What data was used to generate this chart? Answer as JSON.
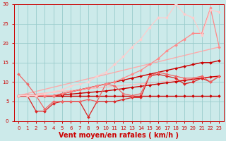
{
  "xlabel": "Vent moyen/en rafales ( km/h )",
  "xlim": [
    -0.5,
    23.5
  ],
  "ylim": [
    0,
    30
  ],
  "xticks": [
    0,
    1,
    2,
    3,
    4,
    5,
    6,
    7,
    8,
    9,
    10,
    11,
    12,
    13,
    14,
    15,
    16,
    17,
    18,
    19,
    20,
    21,
    22,
    23
  ],
  "yticks": [
    0,
    5,
    10,
    15,
    20,
    25,
    30
  ],
  "bg_color": "#cceaea",
  "grid_color": "#99cccc",
  "series": [
    {
      "x": [
        0,
        1,
        2,
        3,
        4,
        5,
        6,
        7,
        8,
        9,
        10,
        11,
        12,
        13,
        14,
        15,
        16,
        17,
        18,
        19,
        20,
        21,
        22,
        23
      ],
      "y": [
        6.5,
        6.5,
        6.5,
        6.5,
        6.5,
        6.5,
        6.5,
        6.5,
        6.5,
        6.5,
        6.5,
        6.5,
        6.5,
        6.5,
        6.5,
        6.5,
        6.5,
        6.5,
        6.5,
        6.5,
        6.5,
        6.5,
        6.5,
        6.5
      ],
      "color": "#cc0000",
      "lw": 1.0,
      "marker": "D",
      "ms": 2.0
    },
    {
      "x": [
        0,
        1,
        2,
        3,
        4,
        5,
        6,
        7,
        8,
        9,
        10,
        11,
        12,
        13,
        14,
        15,
        16,
        17,
        18,
        19,
        20,
        21,
        22,
        23
      ],
      "y": [
        6.5,
        6.5,
        6.5,
        6.5,
        6.5,
        6.7,
        6.9,
        7.1,
        7.3,
        7.5,
        7.7,
        8.0,
        8.3,
        8.6,
        8.9,
        9.2,
        9.5,
        9.8,
        10.1,
        10.4,
        10.7,
        11.0,
        11.3,
        11.5
      ],
      "color": "#cc0000",
      "lw": 1.0,
      "marker": "D",
      "ms": 2.0
    },
    {
      "x": [
        0,
        1,
        2,
        3,
        4,
        5,
        6,
        7,
        8,
        9,
        10,
        11,
        12,
        13,
        14,
        15,
        16,
        17,
        18,
        19,
        20,
        21,
        22,
        23
      ],
      "y": [
        6.5,
        6.5,
        6.5,
        6.5,
        6.5,
        7.0,
        7.5,
        8.0,
        8.5,
        9.0,
        9.5,
        10.0,
        10.5,
        11.0,
        11.5,
        12.0,
        12.5,
        13.0,
        13.5,
        14.0,
        14.5,
        15.0,
        15.0,
        15.5
      ],
      "color": "#cc0000",
      "lw": 1.0,
      "marker": "D",
      "ms": 2.0
    },
    {
      "x": [
        0,
        1,
        2,
        3,
        4,
        5,
        6,
        7,
        8,
        9,
        10,
        11,
        12,
        13,
        14,
        15,
        16,
        17,
        18,
        19,
        20,
        21,
        22,
        23
      ],
      "y": [
        6.5,
        6.5,
        2.5,
        2.5,
        4.5,
        5.0,
        5.0,
        5.0,
        1.0,
        5.0,
        5.0,
        5.0,
        5.5,
        6.0,
        6.0,
        11.5,
        12.0,
        11.5,
        11.0,
        9.5,
        10.0,
        11.0,
        10.0,
        11.5
      ],
      "color": "#dd2222",
      "lw": 0.9,
      "marker": "D",
      "ms": 2.0
    },
    {
      "x": [
        0,
        1,
        2,
        3,
        4,
        5,
        6,
        7,
        8,
        9,
        10,
        11,
        12,
        13,
        14,
        15,
        16,
        17,
        18,
        19,
        20,
        21,
        22,
        23
      ],
      "y": [
        12.0,
        9.5,
        6.5,
        3.0,
        5.0,
        5.0,
        5.0,
        5.0,
        5.5,
        5.0,
        9.5,
        9.0,
        7.0,
        6.5,
        7.0,
        11.5,
        12.5,
        12.0,
        11.5,
        11.0,
        11.0,
        11.5,
        10.0,
        11.5
      ],
      "color": "#ee6666",
      "lw": 0.9,
      "marker": "D",
      "ms": 2.0
    },
    {
      "x": [
        0,
        23
      ],
      "y": [
        6.5,
        19.0
      ],
      "color": "#ffaaaa",
      "lw": 1.0,
      "marker": null,
      "ms": 0
    },
    {
      "x": [
        0,
        23
      ],
      "y": [
        6.5,
        11.5
      ],
      "color": "#ffbbbb",
      "lw": 1.0,
      "marker": null,
      "ms": 0
    },
    {
      "x": [
        0,
        1,
        2,
        3,
        4,
        5,
        6,
        7,
        8,
        9,
        10,
        11,
        12,
        13,
        14,
        15,
        16,
        17,
        18,
        19,
        20,
        21,
        22,
        23
      ],
      "y": [
        6.5,
        6.5,
        6.5,
        6.5,
        6.5,
        7.0,
        7.5,
        8.0,
        8.5,
        9.0,
        9.5,
        10.0,
        11.0,
        12.0,
        13.0,
        14.5,
        16.0,
        18.0,
        19.5,
        21.0,
        22.5,
        22.5,
        29.0,
        19.0
      ],
      "color": "#ff8888",
      "lw": 0.9,
      "marker": "D",
      "ms": 2.0
    },
    {
      "x": [
        0,
        1,
        2,
        3,
        4,
        5,
        6,
        7,
        8,
        9,
        10,
        11,
        12,
        13,
        14,
        15,
        16,
        17,
        18,
        19,
        20,
        21,
        22,
        23
      ],
      "y": [
        6.5,
        6.5,
        6.5,
        7.0,
        7.5,
        8.0,
        9.0,
        9.5,
        10.0,
        11.5,
        12.5,
        14.5,
        16.5,
        19.0,
        21.0,
        24.0,
        26.5,
        26.5,
        30.0,
        27.5,
        26.5,
        22.0,
        28.5,
        28.0
      ],
      "color": "#ffcccc",
      "lw": 0.9,
      "marker": "D",
      "ms": 2.0
    }
  ],
  "tick_color": "#cc0000",
  "label_color": "#cc0000",
  "tick_fontsize": 5.0,
  "xlabel_fontsize": 7.0
}
